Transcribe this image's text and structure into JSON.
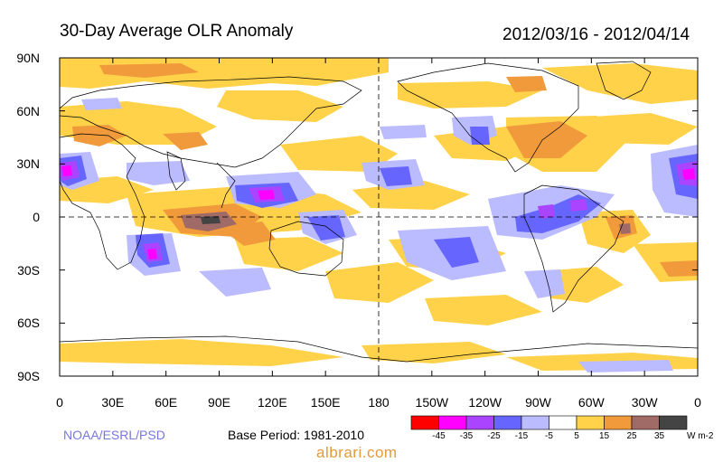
{
  "title": "30-Day Average OLR Anomaly",
  "period": "2012/03/16 - 2012/04/14",
  "credit": "NOAA/ESRL/PSD",
  "base_period": "Base Period: 1981-2010",
  "watermark": "albrari.com",
  "lat_labels": [
    "90N",
    "60N",
    "30N",
    "0",
    "30S",
    "60S",
    "90S"
  ],
  "lon_labels": [
    "0",
    "30E",
    "60E",
    "90E",
    "120E",
    "150E",
    "180",
    "150W",
    "120W",
    "90W",
    "60W",
    "30W",
    "0"
  ],
  "colorbar": {
    "colors": [
      "#ff0000",
      "#ff00ff",
      "#aa44ff",
      "#6666ff",
      "#bbbbff",
      "#ffffff",
      "#ffd24a",
      "#f09a3c",
      "#a06a66",
      "#444444"
    ],
    "labels": [
      "-45",
      "-35",
      "-25",
      "-15",
      "-5",
      "5",
      "15",
      "25",
      "35"
    ],
    "unit": "W m-2"
  },
  "palette": {
    "pos15": "#ffd24a",
    "pos25": "#f09a3c",
    "pos35": "#a06a66",
    "pos45": "#444444",
    "neg5": "#bbbbff",
    "neg15": "#6666ff",
    "neg25": "#aa44ff",
    "neg35": "#ff00ff"
  }
}
